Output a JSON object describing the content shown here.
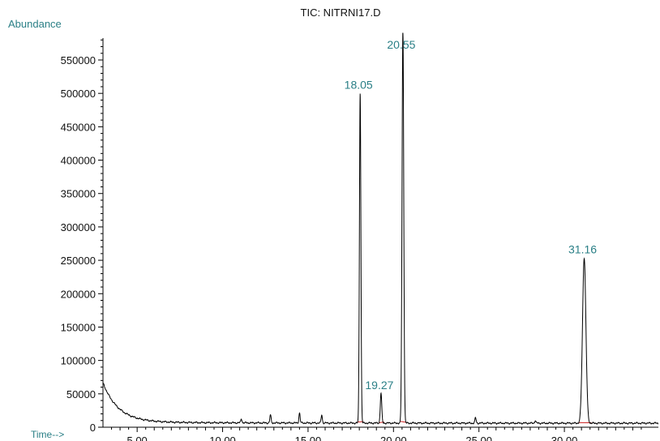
{
  "chart_data": {
    "type": "line",
    "title": "TIC: NITRNI17.D",
    "ylabel": "Abundance",
    "xlabel": "Time-->",
    "xlim": [
      3.0,
      35.5
    ],
    "ylim": [
      0,
      600000
    ],
    "x_ticks": [
      5,
      10,
      15,
      20,
      25,
      30
    ],
    "x_tick_labels": [
      "5.00",
      "10.00",
      "15.00",
      "20.00",
      "25.00",
      "30.00"
    ],
    "y_ticks": [
      0,
      50000,
      100000,
      150000,
      200000,
      250000,
      300000,
      350000,
      400000,
      450000,
      500000,
      550000
    ],
    "y_tick_labels": [
      "0",
      "50000",
      "100000",
      "150000",
      "200000",
      "250000",
      "300000",
      "350000",
      "400000",
      "450000",
      "500000",
      "550000"
    ],
    "grid": false,
    "colors": {
      "trace": "#000000",
      "label": "#2a7f86",
      "integration": "#cc2222"
    },
    "baseline": {
      "decay_start": 65000,
      "decay_end": 6000,
      "noise": [
        {
          "rt": 11.1,
          "abundance": 6000
        },
        {
          "rt": 12.8,
          "abundance": 12000
        },
        {
          "rt": 14.5,
          "abundance": 15000
        },
        {
          "rt": 15.8,
          "abundance": 12000
        },
        {
          "rt": 24.8,
          "abundance": 8000
        },
        {
          "rt": 28.3,
          "abundance": 4000
        }
      ]
    },
    "series": [
      {
        "peaks": [
          {
            "rt": 18.05,
            "abundance": 495000,
            "width": 0.06
          },
          {
            "rt": 19.27,
            "abundance": 45000,
            "width": 0.06
          },
          {
            "rt": 20.55,
            "abundance": 590000,
            "width": 0.07
          },
          {
            "rt": 31.16,
            "abundance": 248000,
            "width": 0.14
          }
        ]
      }
    ],
    "peak_labels": [
      {
        "text": "18.05",
        "rt": 18.05,
        "abundance": 495000
      },
      {
        "text": "19.27",
        "rt": 19.27,
        "abundance": 45000
      },
      {
        "text": "20.55",
        "rt": 20.55,
        "abundance": 555000
      },
      {
        "text": "31.16",
        "rt": 31.16,
        "abundance": 248000
      }
    ]
  }
}
